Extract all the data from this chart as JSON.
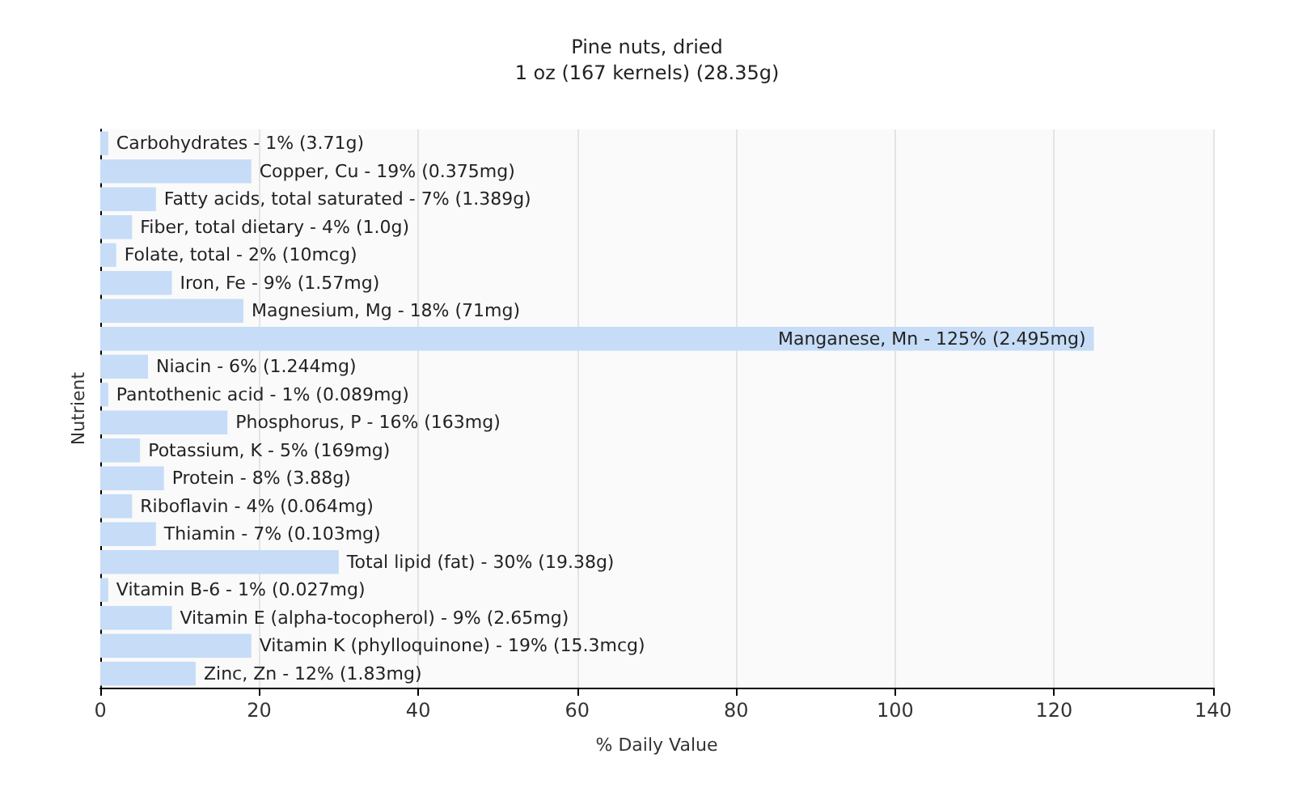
{
  "chart_data": {
    "type": "bar",
    "orientation": "horizontal",
    "title": "Pine nuts, dried",
    "subtitle": "1 oz (167 kernels) (28.35g)",
    "xlabel": "% Daily Value",
    "ylabel": "Nutrient",
    "categories": [
      "Carbohydrates - 1% (3.71g)",
      "Copper, Cu - 19% (0.375mg)",
      "Fatty acids, total saturated - 7% (1.389g)",
      "Fiber, total dietary - 4% (1.0g)",
      "Folate, total - 2% (10mcg)",
      "Iron, Fe - 9% (1.57mg)",
      "Magnesium, Mg - 18% (71mg)",
      "Manganese, Mn - 125% (2.495mg)",
      "Niacin - 6% (1.244mg)",
      "Pantothenic acid - 1% (0.089mg)",
      "Phosphorus, P - 16% (163mg)",
      "Potassium, K - 5% (169mg)",
      "Protein - 8% (3.88g)",
      "Riboflavin - 4% (0.064mg)",
      "Thiamin - 7% (0.103mg)",
      "Total lipid (fat) - 30% (19.38g)",
      "Vitamin B-6 - 1% (0.027mg)",
      "Vitamin E (alpha-tocopherol) - 9% (2.65mg)",
      "Vitamin K (phylloquinone) - 19% (15.3mcg)",
      "Zinc, Zn - 12% (1.83mg)"
    ],
    "values": [
      1,
      19,
      7,
      4,
      2,
      9,
      18,
      125,
      6,
      1,
      16,
      5,
      8,
      4,
      7,
      30,
      1,
      9,
      19,
      12
    ],
    "color": "#c6dcf7",
    "xlim": [
      0,
      140
    ],
    "xticks": [
      0,
      20,
      40,
      60,
      80,
      100,
      120,
      140
    ],
    "grid": "x",
    "tick_labels": "x"
  }
}
